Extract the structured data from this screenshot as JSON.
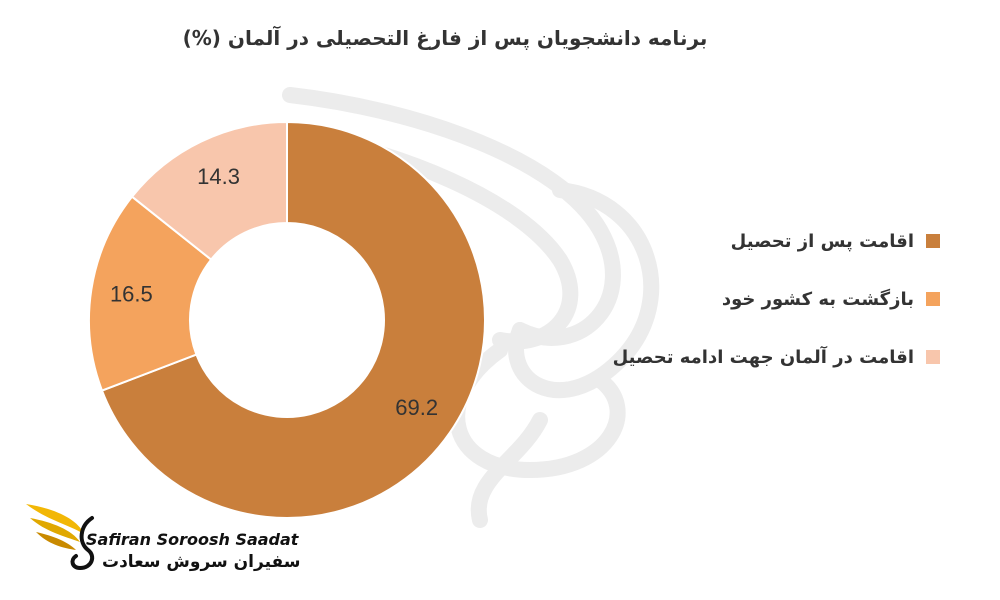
{
  "chart_title": "برنامه دانشجویان پس از فارغ التحصیلی در آلمان (%)",
  "chart_data": {
    "type": "pie",
    "variant": "donut",
    "title": "برنامه دانشجویان پس از فارغ التحصیلی در آلمان (%)",
    "categories": [
      "اقامت پس از تحصیل",
      "بازگشت به کشور خود",
      "اقامت در آلمان جهت ادامه تحصیل"
    ],
    "values": [
      69.2,
      16.5,
      14.3
    ],
    "data_labels": [
      "69.2",
      "16.5",
      "14.3"
    ],
    "colors": [
      "#C97F3C",
      "#F4A35D",
      "#F8C6AC"
    ],
    "legend_position": "right"
  },
  "logo": {
    "name_en": "Safiran Soroosh Saadat",
    "name_fa": "سفیران سروش سعادت",
    "icon": "phoenix-logo-icon",
    "colors": {
      "wing": "#F2B705",
      "wing_dark": "#C98A00",
      "text": "#111111"
    }
  },
  "watermark": {
    "icon": "phoenix-watermark-icon",
    "color": "#EDEDED"
  }
}
